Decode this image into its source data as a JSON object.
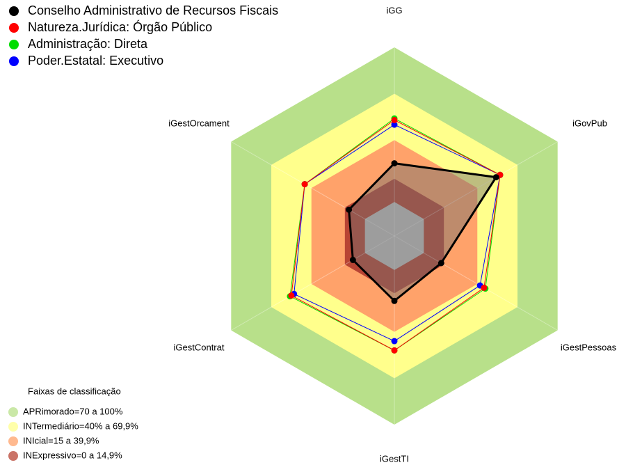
{
  "chart_data": {
    "type": "radar",
    "categories": [
      "iGG",
      "iGovPub",
      "iGestPessoas",
      "iGestTI",
      "iGestContrat",
      "iGestOrcament"
    ],
    "rlim": [
      -22,
      100
    ],
    "series": [
      {
        "name": "Conselho Administrativo de Recursos Fiscais",
        "color": "#000000",
        "values": [
          25,
          54,
          13,
          20,
          9,
          12
        ]
      },
      {
        "name": "Natureza.Jurídica: Órgão Público",
        "color": "#ff0000",
        "values": [
          53,
          57,
          45,
          52,
          55,
          45
        ]
      },
      {
        "name": "Administração: Direta",
        "color": "#00dd00",
        "values": [
          54,
          57,
          46,
          52,
          56,
          45
        ]
      },
      {
        "name": "Poder.Estatal: Executivo",
        "color": "#0000ff",
        "values": [
          50,
          57,
          42,
          46,
          53,
          45
        ]
      }
    ],
    "bands_title": "Faixas de classificação",
    "bands": [
      {
        "label": "APRimorado=70 a 100%",
        "from": 70,
        "to": 100,
        "color": "#b8e08a"
      },
      {
        "label": "INTermediário=40% a 69,9%",
        "from": 40,
        "to": 70,
        "color": "#ffff8c"
      },
      {
        "label": "INIcial=15 a 39,9%",
        "from": 15,
        "to": 40,
        "color": "#ffa26a"
      },
      {
        "label": "INExpressivo=0 a 14,9%",
        "from": 0,
        "to": 15,
        "color": "#b84434"
      }
    ]
  }
}
